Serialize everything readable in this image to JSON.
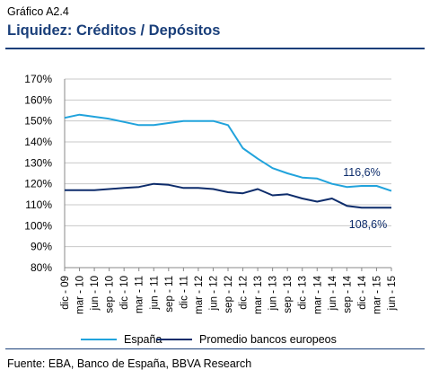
{
  "header": {
    "label": "Gráfico A2.4",
    "title": "Liquidez: Créditos / Depósitos"
  },
  "source": "Fuente: EBA, Banco de España, BBVA Research",
  "colors": {
    "espana": "#21a3dc",
    "europe": "#0d2c6b",
    "title": "#1a3f7a",
    "grid": "#c8c8c8"
  },
  "chart_data": {
    "type": "line",
    "y_ticks": [
      "80%",
      "90%",
      "100%",
      "110%",
      "120%",
      "130%",
      "140%",
      "150%",
      "160%",
      "170%"
    ],
    "ylim": [
      80,
      170
    ],
    "grid": true,
    "x": [
      "dic - 09",
      "mar - 10",
      "jun - 10",
      "sep - 10",
      "dic - 10",
      "mar - 11",
      "jun - 11",
      "sep - 11",
      "dic - 11",
      "mar - 12",
      "jun - 12",
      "sep - 12",
      "dic - 12",
      "mar - 13",
      "jun - 13",
      "sep - 13",
      "dic - 13",
      "mar - 14",
      "jun - 14",
      "sep - 14",
      "dic - 14",
      "mar - 15",
      "jun - 15"
    ],
    "series": [
      {
        "name": "España",
        "color": "#21a3dc",
        "values": [
          151.5,
          153,
          152,
          151,
          149.5,
          148,
          148,
          149,
          150,
          150,
          150,
          148,
          137,
          132,
          127.5,
          125,
          123,
          122.5,
          120,
          118.5,
          119,
          119,
          116.6
        ]
      },
      {
        "name": "Promedio bancos europeos",
        "color": "#0d2c6b",
        "values": [
          117,
          117,
          117,
          117.5,
          118,
          118.5,
          120,
          119.5,
          118,
          118,
          117.5,
          116,
          115.5,
          117.5,
          114.5,
          115,
          113,
          111.5,
          113,
          109.5,
          108.6,
          108.6,
          108.6
        ]
      }
    ],
    "annotations": [
      "116,6%",
      "108,6%"
    ],
    "legend": "bottom"
  }
}
